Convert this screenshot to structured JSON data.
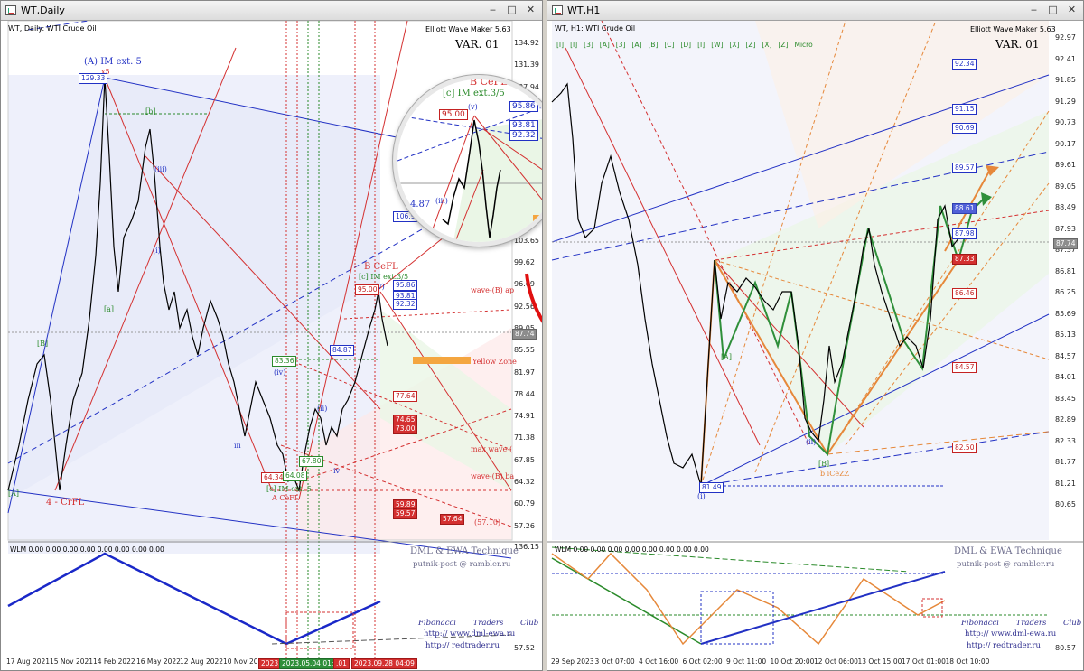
{
  "left_window": {
    "title": "WT,Daily",
    "buttons": [
      "‒",
      "□",
      "✕"
    ],
    "symbol_label": "WT, Daily:  WTI Crude Oil",
    "indicator": "Elliott Wave Maker 5.63",
    "variant": "VAR. 01",
    "price_scale": [
      "134.92",
      "131.39",
      "127.94",
      "124.47",
      "121.00",
      "117.53",
      "114.06",
      "110.59",
      "106.97",
      "103.65",
      "99.62",
      "96.09",
      "92.56",
      "89.05",
      "85.55",
      "81.97",
      "78.44",
      "74.91",
      "71.38",
      "67.85",
      "64.32",
      "60.79",
      "57.26"
    ],
    "current_price": "87.74",
    "time_scale": [
      "17 Aug 2021",
      "15 Nov 2021",
      "14 Feb 2022",
      "16 May 2022",
      "12 Aug 2022",
      "10 Nov 2022"
    ],
    "time_tags": [
      "2023.01.",
      "2023.05.04 01:05",
      ".01",
      "2023.09.28 04:09"
    ],
    "wave_labels": {
      "top": "(A) IM ext. 5",
      "x5": "x5",
      "four": "4 - CrFL",
      "b_cefl": "B CeFL",
      "c_im": "[c] IM ext.3/5",
      "v": "(v)",
      "a_cefl": "A CeFL",
      "c_im_low": "[c] IM ext. 5",
      "b_sq": "[b]",
      "a_sq": "[a]",
      "iii": "(iii)",
      "iv": "(iv)",
      "i": "(i)",
      "ii": "(ii)",
      "small_ii": "ii",
      "small_iv": "iv",
      "small_iii": "iii",
      "wave_b_ap": "wave-(B) ap",
      "yellow_zone": "Yellow Zone",
      "max_wave": "max wave-(",
      "wave_b_ba": "wave-(B) ba",
      "bracket_a": "[A]",
      "bracket_b": "[B]",
      "price_57": "(57.10)"
    },
    "tags": {
      "t12933": "129.33",
      "t10697": "106.97",
      "t9500": "95.00",
      "t8487": "84.87",
      "t8336": "83.36",
      "t7764": "77.64",
      "t7465": "74.65",
      "t7300": "73.00",
      "t6434": "64.34",
      "t6408": "64.08",
      "t6780": "67.80",
      "t5989": "59.89",
      "t5957": "59.57",
      "t5764": "57.64",
      "t9586": "95.86",
      "t9381": "93.81",
      "t9232": "92.32"
    },
    "oscillator": {
      "label": "WLM 0.00 0.00 0.00 0.00 0.00 0.00 0.00 0.00",
      "scale_top": "136.15",
      "scale_bottom": "57.52",
      "brand": "DML & EWA Technique",
      "email": "putnik-post @ rambler.ru",
      "club": "Fibonacci Traders Club",
      "url1": "http:// www.dml-ewa.ru",
      "url2": "http:// redtrader.ru"
    },
    "zoom": {
      "title": "B CeFL",
      "subtitle": "[c] IM ext.3/5",
      "v": "(v)",
      "t9500": "95.00",
      "t9586": "95.86",
      "t9381": "93.81",
      "t9232": "92.32",
      "t487": "4.87",
      "iii": "(iii)"
    }
  },
  "right_window": {
    "title": "WT,H1",
    "buttons": [
      "‒",
      "□",
      "✕"
    ],
    "symbol_label": "WT, H1:  WTI Crude Oil",
    "indicator": "Elliott Wave Maker 5.63",
    "variant": "VAR. 01",
    "wave_degree_bar": [
      "[I]",
      "[I]",
      "[3]",
      "[A]",
      "[3]",
      "[A]",
      "[B]",
      "[C]",
      "[D]",
      "[I]",
      "[W]",
      "[X]",
      "[Z]",
      "[X]",
      "[Z]",
      "Micro"
    ],
    "price_scale": [
      "92.97",
      "92.41",
      "91.85",
      "91.29",
      "90.73",
      "90.17",
      "89.61",
      "89.05",
      "88.49",
      "87.93",
      "87.37",
      "86.81",
      "86.25",
      "85.69",
      "85.13",
      "84.57",
      "84.01",
      "83.45",
      "82.89",
      "82.33",
      "81.77",
      "81.21",
      "80.65"
    ],
    "current_price": "87.74",
    "time_scale": [
      "29 Sep 2023",
      "3 Oct 07:00",
      "4 Oct 16:00",
      "6 Oct 02:00",
      "9 Oct 11:00",
      "10 Oct 20:00",
      "12 Oct 06:00",
      "13 Oct 15:00",
      "17 Oct 01:00",
      "18 Oct 10:00"
    ],
    "tags": {
      "t9234": "92.34",
      "t9115": "91.15",
      "t9069": "90.69",
      "t8957": "89.57",
      "t8861": "88.61",
      "t8798": "87.98",
      "t8733": "87.33",
      "t8646": "86.46",
      "t8457": "84.57",
      "t8250": "82.50",
      "t8149": "81.49"
    },
    "wave_labels": {
      "i_low": "(i)",
      "b_cezz": "b iCeZZ",
      "a_low": "[A]",
      "ii": "(ii)",
      "b": "[B]"
    },
    "oscillator": {
      "label": "WLM 0.00 0.00 0.00 0.00 0.00 0.00 0.00 0.00",
      "scale_bottom": "80.57",
      "brand": "DML & EWA Technique",
      "email": "putnik-post @ rambler.ru",
      "club": "Fibonacci Traders Club",
      "url1": "http:// www.dml-ewa.ru",
      "url2": "http:// redtrader.ru"
    }
  }
}
